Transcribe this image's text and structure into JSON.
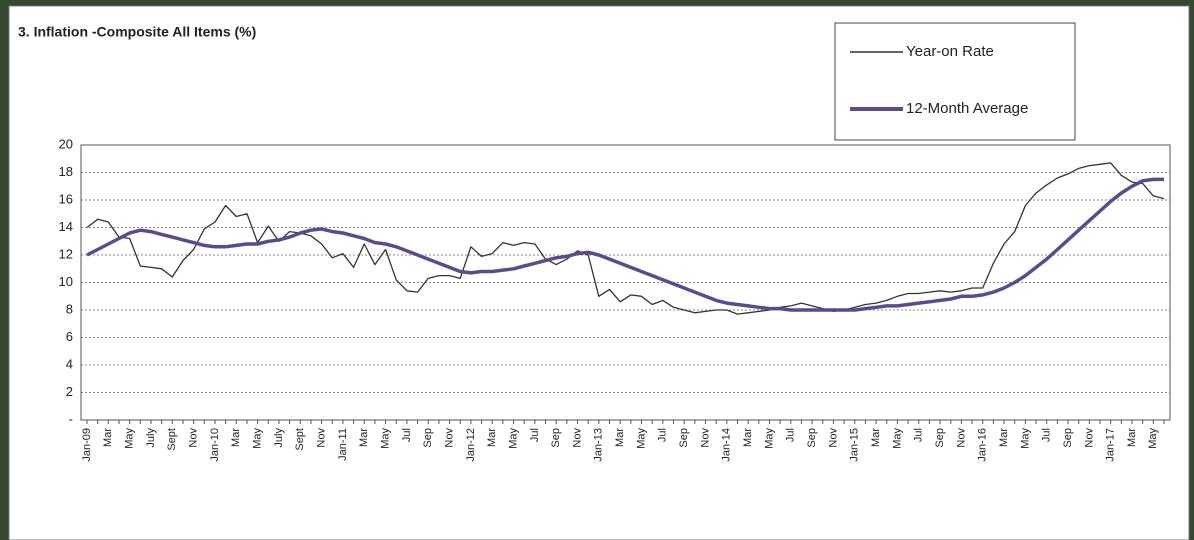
{
  "chart_data": {
    "type": "line",
    "title": "3. Inflation -Composite All Items (%)",
    "categories": [
      "Jan-09",
      null,
      "Mar",
      null,
      "May",
      null,
      "July",
      null,
      "Sept",
      null,
      "Nov",
      null,
      "Jan-10",
      null,
      "Mar",
      null,
      "May",
      null,
      "July",
      null,
      "Sept",
      null,
      "Nov",
      null,
      "Jan-11",
      null,
      "Mar",
      null,
      "May",
      null,
      "Jul",
      null,
      "Sep",
      null,
      "Nov",
      null,
      "Jan-12",
      null,
      "Mar",
      null,
      "May",
      null,
      "Jul",
      null,
      "Sep",
      null,
      "Nov",
      null,
      "Jan-13",
      null,
      "Mar",
      null,
      "May",
      null,
      "Jul",
      null,
      "Sep",
      null,
      "Nov",
      null,
      "Jan-14",
      null,
      "Mar",
      null,
      "May",
      null,
      "Jul",
      null,
      "Sep",
      null,
      "Nov",
      null,
      "Jan-15",
      null,
      "Mar",
      null,
      "May",
      null,
      "Jul",
      null,
      "Sep",
      null,
      "Nov",
      null,
      "Jan-16",
      null,
      "Mar",
      null,
      "May",
      null,
      "Jul",
      null,
      "Sep",
      null,
      "Nov",
      null,
      "Jan-17",
      null,
      "Mar",
      null,
      "May",
      null
    ],
    "series": [
      {
        "name": "Year-on Rate",
        "color": "#333333",
        "values": [
          14.0,
          14.6,
          14.4,
          13.3,
          13.2,
          11.2,
          11.1,
          11.0,
          10.4,
          11.6,
          12.4,
          13.9,
          14.4,
          15.6,
          14.8,
          15.0,
          12.9,
          14.1,
          13.0,
          13.7,
          13.6,
          13.4,
          12.8,
          11.8,
          12.1,
          11.1,
          12.8,
          11.3,
          12.4,
          10.2,
          9.4,
          9.3,
          10.3,
          10.5,
          10.5,
          10.3,
          12.6,
          11.9,
          12.1,
          12.9,
          12.7,
          12.9,
          12.8,
          11.7,
          11.3,
          11.7,
          12.3,
          12.0,
          9.0,
          9.5,
          8.6,
          9.1,
          9.0,
          8.4,
          8.7,
          8.2,
          8.0,
          7.8,
          7.9,
          8.0,
          8.0,
          7.7,
          7.8,
          7.9,
          8.0,
          8.2,
          8.3,
          8.5,
          8.3,
          8.1,
          7.9,
          8.0,
          8.2,
          8.4,
          8.5,
          8.7,
          9.0,
          9.2,
          9.2,
          9.3,
          9.4,
          9.3,
          9.4,
          9.6,
          9.6,
          11.4,
          12.8,
          13.7,
          15.6,
          16.5,
          17.1,
          17.6,
          17.9,
          18.3,
          18.5,
          18.6,
          18.7,
          17.8,
          17.3,
          17.2,
          16.3,
          16.1
        ]
      },
      {
        "name": "12-Month Average",
        "color": "#5b4a8c",
        "values": [
          12.0,
          12.4,
          12.8,
          13.2,
          13.6,
          13.8,
          13.7,
          13.5,
          13.3,
          13.1,
          12.9,
          12.7,
          12.6,
          12.6,
          12.7,
          12.8,
          12.8,
          13.0,
          13.1,
          13.3,
          13.6,
          13.8,
          13.9,
          13.7,
          13.6,
          13.4,
          13.2,
          12.9,
          12.8,
          12.6,
          12.3,
          12.0,
          11.7,
          11.4,
          11.1,
          10.8,
          10.7,
          10.8,
          10.8,
          10.9,
          11.0,
          11.2,
          11.4,
          11.6,
          11.8,
          11.9,
          12.1,
          12.2,
          12.0,
          11.7,
          11.4,
          11.1,
          10.8,
          10.5,
          10.2,
          9.9,
          9.6,
          9.3,
          9.0,
          8.7,
          8.5,
          8.4,
          8.3,
          8.2,
          8.1,
          8.1,
          8.0,
          8.0,
          8.0,
          8.0,
          8.0,
          8.0,
          8.0,
          8.1,
          8.2,
          8.3,
          8.3,
          8.4,
          8.5,
          8.6,
          8.7,
          8.8,
          9.0,
          9.0,
          9.1,
          9.3,
          9.6,
          10.0,
          10.5,
          11.1,
          11.7,
          12.4,
          13.1,
          13.8,
          14.5,
          15.2,
          15.9,
          16.5,
          17.0,
          17.4,
          17.5,
          17.5
        ]
      }
    ],
    "ylim": [
      0,
      20
    ],
    "yticks": [
      {
        "value": 0,
        "label": "-"
      },
      2,
      4,
      6,
      8,
      10,
      12,
      14,
      16,
      18,
      20
    ],
    "grid": true
  }
}
